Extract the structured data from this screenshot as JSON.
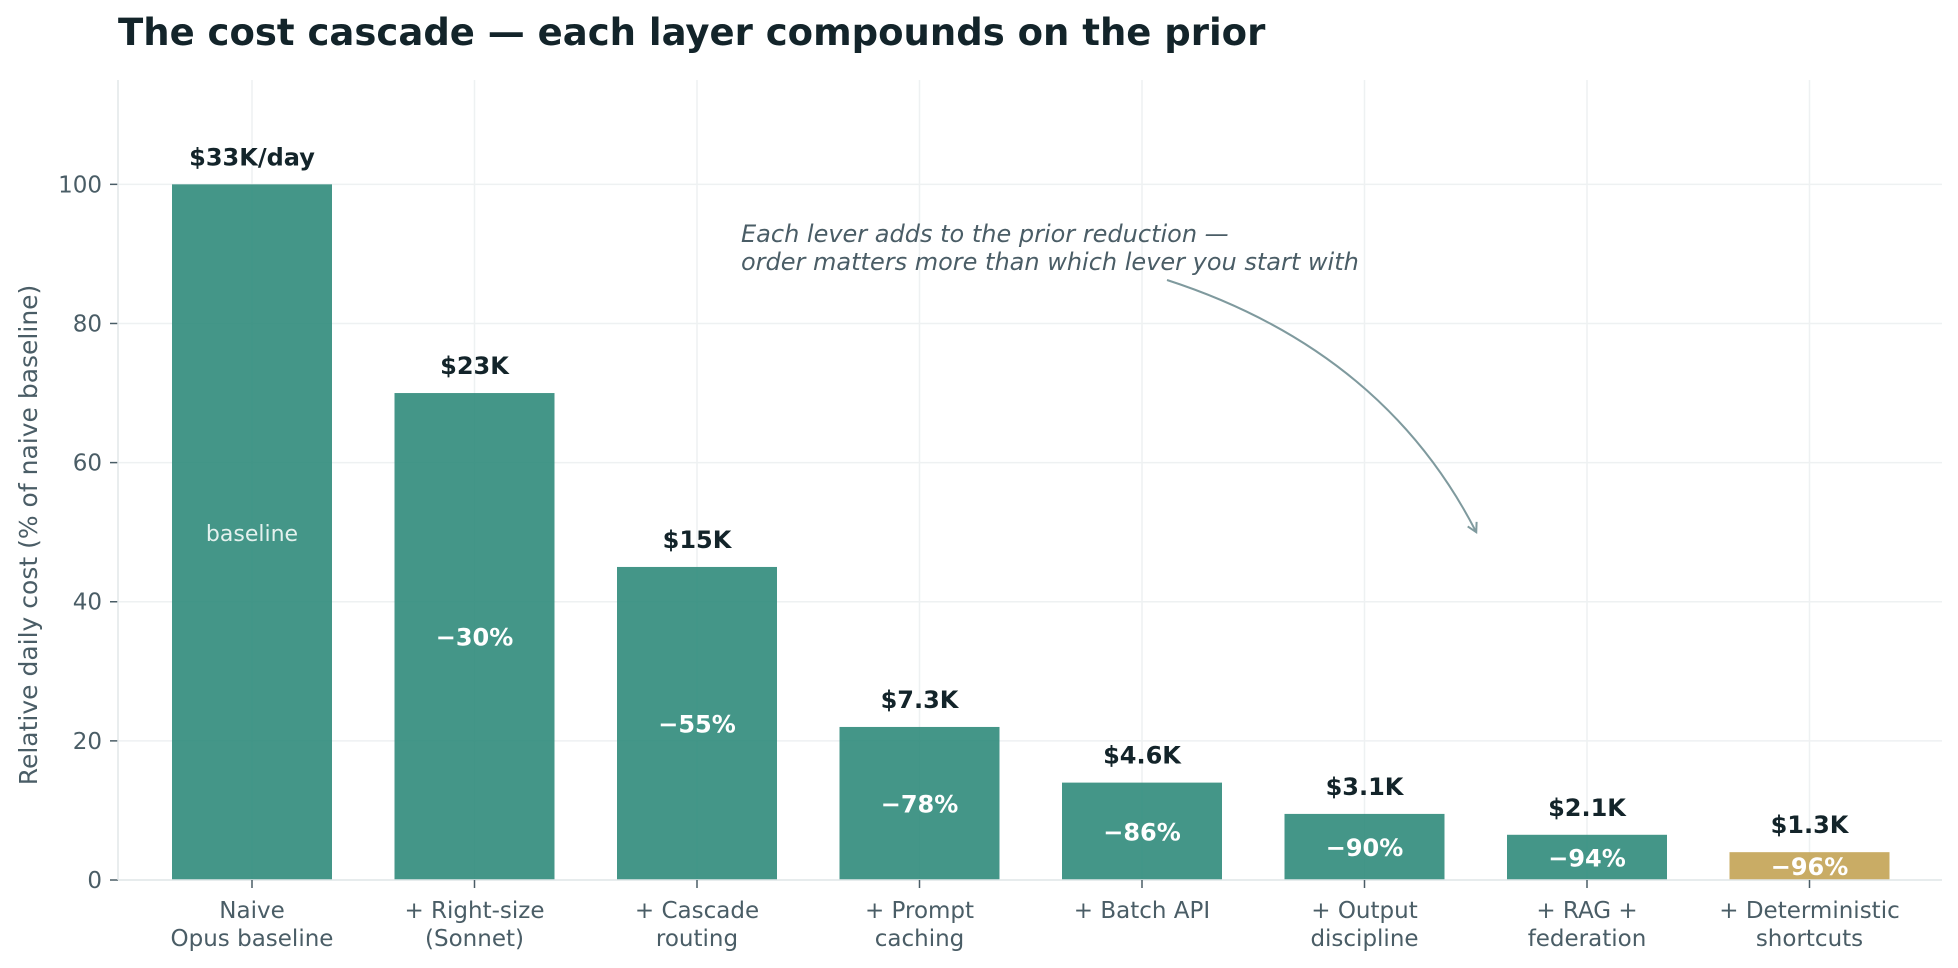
{
  "chart_data": {
    "type": "bar",
    "title": "The cost cascade — each layer compounds on the prior",
    "xlabel": "",
    "ylabel": "Relative daily cost (% of naive baseline)",
    "ylim": [
      0,
      115
    ],
    "yticks": [
      0,
      20,
      40,
      60,
      80,
      100
    ],
    "grid": true,
    "categories": [
      [
        "Naive",
        "Opus baseline"
      ],
      [
        "+ Right-size",
        "(Sonnet)"
      ],
      [
        "+ Cascade",
        "routing"
      ],
      [
        "+ Prompt",
        "caching"
      ],
      [
        "+ Batch API"
      ],
      [
        "+ Output",
        "discipline"
      ],
      [
        "+ RAG +",
        "federation"
      ],
      [
        "+ Deterministic",
        "shortcuts"
      ]
    ],
    "values": [
      100,
      70,
      45,
      22,
      14,
      9.5,
      6.5,
      4
    ],
    "value_labels": [
      "$33K/day",
      "$23K",
      "$15K",
      "$7.3K",
      "$4.6K",
      "$3.1K",
      "$2.1K",
      "$1.3K"
    ],
    "inner_labels": [
      "baseline",
      "−30%",
      "−55%",
      "−78%",
      "−86%",
      "−90%",
      "−94%",
      "−96%"
    ],
    "colors": [
      "#2a8778",
      "#2a8778",
      "#2a8778",
      "#2a8778",
      "#2a8778",
      "#2a8778",
      "#2a8778",
      "#c1a050"
    ],
    "annotation": {
      "lines": [
        "Each lever adds to the prior reduction —",
        "order matters more than which lever you start with"
      ],
      "arrow_to": {
        "category_index": 5.5,
        "value": 50
      }
    }
  }
}
